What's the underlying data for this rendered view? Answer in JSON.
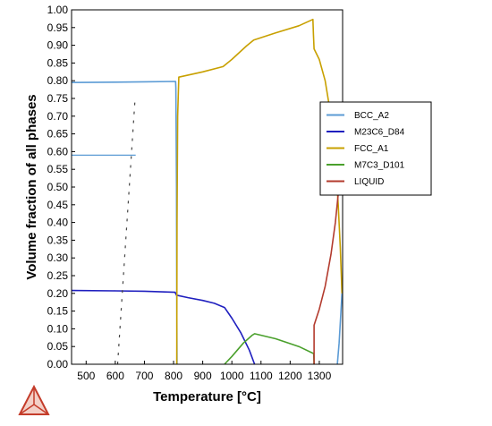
{
  "chart_data": {
    "type": "line",
    "title": "",
    "xlabel": "Temperature [°C]",
    "ylabel": "Volume fraction of all phases",
    "xlim": [
      450,
      1380
    ],
    "ylim": [
      0,
      1
    ],
    "x_ticks": [
      500,
      600,
      700,
      800,
      900,
      1000,
      1100,
      1200,
      1300
    ],
    "y_ticks": [
      "0.00",
      "0.05",
      "0.10",
      "0.15",
      "0.20",
      "0.25",
      "0.30",
      "0.35",
      "0.40",
      "0.45",
      "0.50",
      "0.55",
      "0.60",
      "0.65",
      "0.70",
      "0.75",
      "0.80",
      "0.85",
      "0.90",
      "0.95",
      "1.00"
    ],
    "grid": false,
    "legend_position": "right-center",
    "series": [
      {
        "name": "BCC_A2",
        "color": "#5b9bd5",
        "points": [
          [
            450,
            0.795
          ],
          [
            600,
            0.796
          ],
          [
            700,
            0.797
          ],
          [
            807,
            0.798
          ],
          [
            808,
            0.78
          ],
          [
            810,
            0.5
          ],
          [
            811,
            0.2
          ],
          [
            812,
            0.0
          ]
        ]
      },
      {
        "name": "BCC_A2",
        "color": "#5b9bd5",
        "points": [
          [
            1362,
            0.0
          ],
          [
            1368,
            0.06
          ],
          [
            1373,
            0.13
          ],
          [
            1378,
            0.2
          ]
        ]
      },
      {
        "name": "M23C6_D84",
        "color": "#1f1fbf",
        "points": [
          [
            450,
            0.208
          ],
          [
            600,
            0.207
          ],
          [
            700,
            0.206
          ],
          [
            805,
            0.203
          ],
          [
            810,
            0.195
          ],
          [
            850,
            0.188
          ],
          [
            900,
            0.18
          ],
          [
            940,
            0.172
          ],
          [
            975,
            0.16
          ],
          [
            1000,
            0.13
          ],
          [
            1030,
            0.09
          ],
          [
            1060,
            0.04
          ],
          [
            1078,
            0.0
          ]
        ]
      },
      {
        "name": "FCC_A1",
        "color": "#c8a000",
        "points": [
          [
            811,
            0.0
          ],
          [
            812,
            0.4
          ],
          [
            814,
            0.7
          ],
          [
            818,
            0.81
          ],
          [
            900,
            0.825
          ],
          [
            970,
            0.84
          ],
          [
            1000,
            0.86
          ],
          [
            1050,
            0.898
          ],
          [
            1075,
            0.915
          ],
          [
            1150,
            0.935
          ],
          [
            1230,
            0.955
          ],
          [
            1278,
            0.973
          ],
          [
            1280,
            0.93
          ],
          [
            1282,
            0.89
          ],
          [
            1300,
            0.86
          ],
          [
            1320,
            0.8
          ],
          [
            1340,
            0.7
          ],
          [
            1355,
            0.58
          ],
          [
            1365,
            0.45
          ],
          [
            1372,
            0.33
          ],
          [
            1378,
            0.2
          ]
        ]
      },
      {
        "name": "M7C3_D101",
        "color": "#4aa02c",
        "points": [
          [
            975,
            0.0
          ],
          [
            1000,
            0.022
          ],
          [
            1040,
            0.06
          ],
          [
            1070,
            0.082
          ],
          [
            1078,
            0.086
          ],
          [
            1150,
            0.072
          ],
          [
            1230,
            0.05
          ],
          [
            1281,
            0.03
          ],
          [
            1282,
            0.0
          ]
        ]
      },
      {
        "name": "LIQUID",
        "color": "#b33b2e",
        "points": [
          [
            1282,
            0.0
          ],
          [
            1282,
            0.11
          ],
          [
            1300,
            0.155
          ],
          [
            1320,
            0.22
          ],
          [
            1340,
            0.31
          ],
          [
            1355,
            0.4
          ],
          [
            1365,
            0.48
          ],
          [
            1372,
            0.56
          ],
          [
            1378,
            0.645
          ]
        ]
      }
    ],
    "legend": [
      "BCC_A2",
      "M23C6_D84",
      "FCC_A1",
      "M7C3_D101",
      "LIQUID"
    ],
    "legend_colors": [
      "#5b9bd5",
      "#1f1fbf",
      "#c8a000",
      "#4aa02c",
      "#b33b2e"
    ],
    "decorations": {
      "dashed_guide_color": "#444444",
      "bcc_level_color": "#5b9bd5",
      "bcc_level_values": [
        0.795,
        0.59
      ],
      "logo_name": "thermo-calc-logo-icon"
    }
  }
}
